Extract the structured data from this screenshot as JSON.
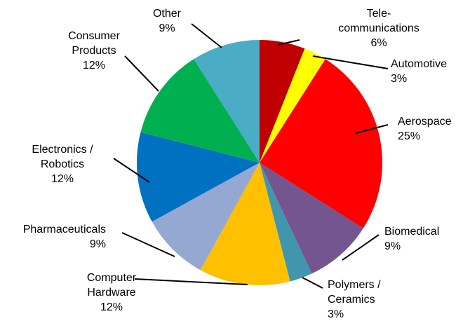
{
  "chart_data": {
    "type": "pie",
    "title": "",
    "start": "12 o'clock",
    "direction": "clockwise",
    "slices": [
      {
        "lines": [
          "Tele-",
          "communications"
        ],
        "percent_label": "6%",
        "value": 6,
        "color": "#c00000"
      },
      {
        "lines": [
          "Automotive"
        ],
        "percent_label": "3%",
        "value": 3,
        "color": "#ffff00"
      },
      {
        "lines": [
          "Aerospace"
        ],
        "percent_label": "25%",
        "value": 25,
        "color": "#ff0000"
      },
      {
        "lines": [
          "Biomedical"
        ],
        "percent_label": "9%",
        "value": 9,
        "color": "#74558f"
      },
      {
        "lines": [
          "Polymers /",
          "Ceramics"
        ],
        "percent_label": "3%",
        "value": 3,
        "color": "#4196ad"
      },
      {
        "lines": [
          "Computer",
          "Hardware"
        ],
        "percent_label": "12%",
        "value": 12,
        "color": "#ffc000"
      },
      {
        "lines": [
          "Pharmaceuticals"
        ],
        "percent_label": "9%",
        "value": 9,
        "color": "#94a8d2"
      },
      {
        "lines": [
          "Electronics /",
          "Robotics"
        ],
        "percent_label": "12%",
        "value": 12,
        "color": "#0070c0"
      },
      {
        "lines": [
          "Consumer",
          "Products"
        ],
        "percent_label": "12%",
        "value": 12,
        "color": "#00b050"
      },
      {
        "lines": [
          "Other"
        ],
        "percent_label": "9%",
        "value": 9,
        "color": "#4bacc6"
      }
    ]
  }
}
